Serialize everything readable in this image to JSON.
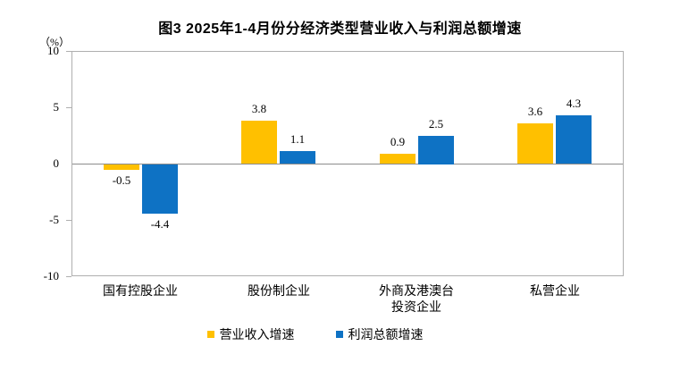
{
  "chart_data": {
    "type": "bar",
    "title": "图3 2025年1-4月份分经济类型营业收入与利润总额增速",
    "unit": "（%）",
    "categories": [
      "国有控股企业",
      "股份制企业",
      "外商及港澳台\n投资企业",
      "私营企业"
    ],
    "series": [
      {
        "name": "营业收入增速",
        "color": "#FFC000",
        "values": [
          -0.5,
          3.8,
          0.9,
          3.6
        ]
      },
      {
        "name": "利润总额增速",
        "color": "#0E72C4",
        "values": [
          -4.4,
          1.1,
          2.5,
          4.3
        ]
      }
    ],
    "ylim": [
      -10,
      10
    ],
    "yticks": [
      10,
      5,
      0,
      -5,
      -10
    ],
    "xlabel": "",
    "ylabel": "（%）",
    "grid": false,
    "legend_position": "bottom",
    "bar_value_labels": true
  },
  "colors": {
    "background": "#FFFFFF",
    "text": "#000000",
    "plot_border": "#AFAFAF",
    "zero_line": "#8C8C8C",
    "series_revenue": "#FFC000",
    "series_profit": "#0E72C4"
  }
}
